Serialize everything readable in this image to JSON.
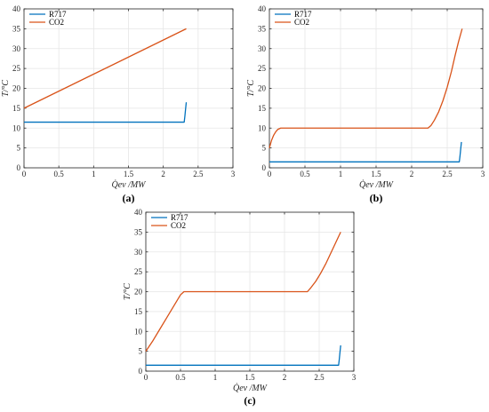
{
  "chart_data": [
    {
      "type": "line",
      "panel_label": "(a)",
      "xlabel": "Q̇ev /MW",
      "ylabel": "T/°C",
      "xlim": [
        0,
        3
      ],
      "ylim": [
        0,
        40
      ],
      "xticks": [
        "0",
        "0.5",
        "1",
        "1.5",
        "2",
        "2.5",
        "3"
      ],
      "yticks": [
        "0",
        "5",
        "10",
        "15",
        "20",
        "25",
        "30",
        "35",
        "40"
      ],
      "grid": true,
      "legend": "top-left",
      "series": [
        {
          "name": "R717",
          "color": "#0072BD",
          "x": [
            0,
            2.3,
            2.31,
            2.32,
            2.33
          ],
          "y": [
            11.5,
            11.5,
            13.0,
            14.8,
            16.5
          ]
        },
        {
          "name": "CO2",
          "color": "#D95319",
          "x": [
            0,
            2.33
          ],
          "y": [
            15,
            35
          ]
        }
      ]
    },
    {
      "type": "line",
      "panel_label": "(b)",
      "xlabel": "Q̇ev /MW",
      "ylabel": "T/°C",
      "xlim": [
        0,
        3
      ],
      "ylim": [
        0,
        40
      ],
      "xticks": [
        "0",
        "0.5",
        "1",
        "1.5",
        "2",
        "2.5",
        "3"
      ],
      "yticks": [
        "0",
        "5",
        "10",
        "15",
        "20",
        "25",
        "30",
        "35",
        "40"
      ],
      "grid": true,
      "legend": "top-left",
      "series": [
        {
          "name": "R717",
          "color": "#0072BD",
          "x": [
            0,
            2.67,
            2.68,
            2.69,
            2.7
          ],
          "y": [
            1.5,
            1.5,
            3.0,
            4.8,
            6.5
          ]
        },
        {
          "name": "CO2",
          "color": "#D95319",
          "x": [
            0,
            0.03,
            0.06,
            0.09,
            0.12,
            0.16,
            2.23,
            2.27,
            2.32,
            2.38,
            2.44,
            2.5,
            2.56,
            2.61,
            2.66,
            2.71
          ],
          "y": [
            5,
            6.9,
            8.2,
            9.1,
            9.7,
            10,
            10,
            10.6,
            12.0,
            14.1,
            16.9,
            20.3,
            24.3,
            28.2,
            31.8,
            35
          ]
        }
      ]
    },
    {
      "type": "line",
      "panel_label": "(c)",
      "xlabel": "Q̇ev /MW",
      "ylabel": "T/°C",
      "xlim": [
        0,
        3
      ],
      "ylim": [
        0,
        40
      ],
      "xticks": [
        "0",
        "0.5",
        "1",
        "1.5",
        "2",
        "2.5",
        "3"
      ],
      "yticks": [
        "0",
        "5",
        "10",
        "15",
        "20",
        "25",
        "30",
        "35",
        "40"
      ],
      "grid": true,
      "legend": "top-left",
      "series": [
        {
          "name": "R717",
          "color": "#0072BD",
          "x": [
            0,
            2.78,
            2.79,
            2.8,
            2.81
          ],
          "y": [
            1.5,
            1.5,
            3.0,
            4.8,
            6.5
          ]
        },
        {
          "name": "CO2",
          "color": "#D95319",
          "x": [
            0,
            0.1,
            0.2,
            0.3,
            0.4,
            0.5,
            0.55,
            2.33,
            2.38,
            2.45,
            2.52,
            2.6,
            2.67,
            2.74,
            2.81
          ],
          "y": [
            5,
            7.6,
            10.5,
            13.4,
            16.3,
            19.2,
            20,
            20,
            21.0,
            22.6,
            24.6,
            27.2,
            29.8,
            32.4,
            35
          ]
        }
      ]
    }
  ]
}
